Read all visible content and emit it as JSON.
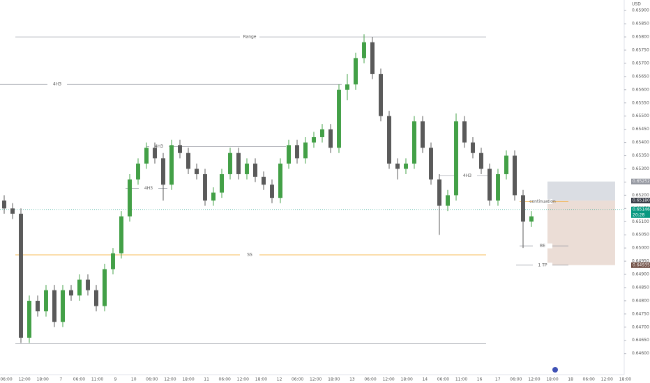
{
  "chart_data": {
    "type": "candlestick",
    "currency": "USD",
    "ylim": [
      0.6452,
      0.6594
    ],
    "yticks": [
      {
        "value": 0.659,
        "label": "0.65900"
      },
      {
        "value": 0.6585,
        "label": "0.65850"
      },
      {
        "value": 0.658,
        "label": "0.65800"
      },
      {
        "value": 0.6575,
        "label": "0.65750"
      },
      {
        "value": 0.657,
        "label": "0.65700"
      },
      {
        "value": 0.6565,
        "label": "0.65650"
      },
      {
        "value": 0.656,
        "label": "0.65600"
      },
      {
        "value": 0.6555,
        "label": "0.65550"
      },
      {
        "value": 0.655,
        "label": "0.65500"
      },
      {
        "value": 0.6545,
        "label": "0.65450"
      },
      {
        "value": 0.654,
        "label": "0.65400"
      },
      {
        "value": 0.6535,
        "label": "0.65350"
      },
      {
        "value": 0.653,
        "label": "0.65300"
      },
      {
        "value": 0.6525,
        "label": "0.65250"
      },
      {
        "value": 0.652,
        "label": "0.65200"
      },
      {
        "value": 0.6515,
        "label": "0.65150"
      },
      {
        "value": 0.651,
        "label": "0.65100"
      },
      {
        "value": 0.6505,
        "label": "0.65050"
      },
      {
        "value": 0.65,
        "label": "0.65000"
      },
      {
        "value": 0.6495,
        "label": "0.64950"
      },
      {
        "value": 0.649,
        "label": "0.64900"
      },
      {
        "value": 0.6485,
        "label": "0.64850"
      },
      {
        "value": 0.648,
        "label": "0.64800"
      },
      {
        "value": 0.6475,
        "label": "0.64750"
      },
      {
        "value": 0.647,
        "label": "0.64700"
      },
      {
        "value": 0.6465,
        "label": "0.64650"
      },
      {
        "value": 0.646,
        "label": "0.64600"
      }
    ],
    "x_labels": [
      "06:00",
      "12:00",
      "18:00",
      "7",
      "06:00",
      "11:00",
      "9",
      "10",
      "06:00",
      "12:00",
      "18:00",
      "11",
      "06:00",
      "12:00",
      "18:00",
      "12",
      "06:00",
      "12:00",
      "18:00",
      "13",
      "06:00",
      "12:00",
      "18:00",
      "14",
      "06:00",
      "11:00",
      "16",
      "17",
      "06:00",
      "12:00",
      "18:00",
      "18",
      "06:00",
      "12:00",
      "18:00"
    ],
    "up_color": "#43a047",
    "down_color": "#5a5a5a",
    "open": [
      0.6518,
      0.6515,
      0.6513,
      0.6466,
      0.648,
      0.6476,
      0.6484,
      0.6472,
      0.6484,
      0.6482,
      0.6488,
      0.6484,
      0.6478,
      0.6492,
      0.6498,
      0.6512,
      0.6526,
      0.6532,
      0.6538,
      0.6534,
      0.6524,
      0.6539,
      0.6536,
      0.653,
      0.6528,
      0.6518,
      0.6521,
      0.6528,
      0.6536,
      0.6528,
      0.6532,
      0.6527,
      0.6524,
      0.6519,
      0.6532,
      0.6539,
      0.6534,
      0.654,
      0.6542,
      0.6545,
      0.6538,
      0.656,
      0.6562,
      0.6572,
      0.6578,
      0.6566,
      0.655,
      0.6532,
      0.653,
      0.6532,
      0.6548,
      0.6538,
      0.6526,
      0.6516,
      0.652,
      0.6548,
      0.654,
      0.6536,
      0.653,
      0.6518,
      0.6528,
      0.6535,
      0.652,
      0.651
    ],
    "high": [
      0.652,
      0.6517,
      0.6515,
      0.6482,
      0.6482,
      0.6486,
      0.6486,
      0.6486,
      0.6486,
      0.649,
      0.649,
      0.6486,
      0.6494,
      0.65,
      0.6514,
      0.6528,
      0.6534,
      0.654,
      0.654,
      0.6536,
      0.6541,
      0.6541,
      0.6538,
      0.6532,
      0.653,
      0.6523,
      0.653,
      0.6538,
      0.6538,
      0.6534,
      0.6534,
      0.6529,
      0.6526,
      0.6534,
      0.6541,
      0.6541,
      0.6542,
      0.6544,
      0.6547,
      0.6547,
      0.6562,
      0.6566,
      0.6574,
      0.6581,
      0.658,
      0.6568,
      0.6552,
      0.6534,
      0.6534,
      0.655,
      0.655,
      0.654,
      0.6528,
      0.6522,
      0.6551,
      0.655,
      0.6542,
      0.6538,
      0.6532,
      0.653,
      0.6537,
      0.6537,
      0.6522,
      0.6514
    ],
    "low": [
      0.6513,
      0.6511,
      0.6464,
      0.6464,
      0.6474,
      0.6474,
      0.647,
      0.647,
      0.648,
      0.648,
      0.6482,
      0.6476,
      0.6476,
      0.649,
      0.6496,
      0.651,
      0.6524,
      0.653,
      0.6532,
      0.6518,
      0.6522,
      0.6534,
      0.6528,
      0.6526,
      0.6516,
      0.6516,
      0.6519,
      0.6526,
      0.6526,
      0.6526,
      0.6525,
      0.6522,
      0.6517,
      0.6517,
      0.653,
      0.6532,
      0.6532,
      0.6538,
      0.654,
      0.6536,
      0.6536,
      0.6556,
      0.656,
      0.657,
      0.6564,
      0.6548,
      0.653,
      0.6526,
      0.6528,
      0.653,
      0.6536,
      0.6524,
      0.6505,
      0.6514,
      0.6518,
      0.6538,
      0.6534,
      0.6528,
      0.6516,
      0.6516,
      0.6526,
      0.6518,
      0.65,
      0.6508
    ],
    "close": [
      0.6515,
      0.6513,
      0.6466,
      0.648,
      0.6476,
      0.6484,
      0.6472,
      0.6484,
      0.6482,
      0.6488,
      0.6484,
      0.6478,
      0.6492,
      0.6498,
      0.6512,
      0.6526,
      0.6532,
      0.6538,
      0.6534,
      0.6524,
      0.6539,
      0.6536,
      0.653,
      0.6528,
      0.6518,
      0.6521,
      0.6528,
      0.6536,
      0.6528,
      0.6532,
      0.6527,
      0.6524,
      0.6519,
      0.6532,
      0.6539,
      0.6534,
      0.654,
      0.6542,
      0.6545,
      0.6538,
      0.656,
      0.6562,
      0.6572,
      0.6578,
      0.6566,
      0.655,
      0.6532,
      0.653,
      0.6532,
      0.6548,
      0.6538,
      0.6526,
      0.6516,
      0.652,
      0.6548,
      0.654,
      0.6536,
      0.653,
      0.6518,
      0.6528,
      0.6535,
      0.652,
      0.651,
      0.6512
    ],
    "levels": [
      {
        "label": "Range",
        "value": 0.658
      },
      {
        "label": "4H3",
        "value": 0.6562
      },
      {
        "label": "4H3",
        "value": 0.65384
      },
      {
        "label": "4H3",
        "value": 0.65226
      },
      {
        "label": "4H3",
        "value": 0.65274
      },
      {
        "value": 0.64637
      },
      {
        "label": "SS",
        "value": 0.64974,
        "color": "#f5a623"
      },
      {
        "label": "continuation",
        "value": 0.65176,
        "color": "#f5a623"
      },
      {
        "label": "BE",
        "value": 0.65008
      },
      {
        "label": "1 TP",
        "value": 0.64935
      }
    ],
    "price_tags": [
      {
        "value": 0.65252,
        "label": "0.65252",
        "color": "#9598a1"
      },
      {
        "value": 0.6518,
        "label": "0.65180",
        "color": "#363a45"
      },
      {
        "value": 0.65146,
        "label": "0.65146",
        "color": "#089981",
        "countdown": "20:28"
      },
      {
        "value": 0.64935,
        "label": "0.64935",
        "color": "#6d4c41"
      }
    ]
  }
}
